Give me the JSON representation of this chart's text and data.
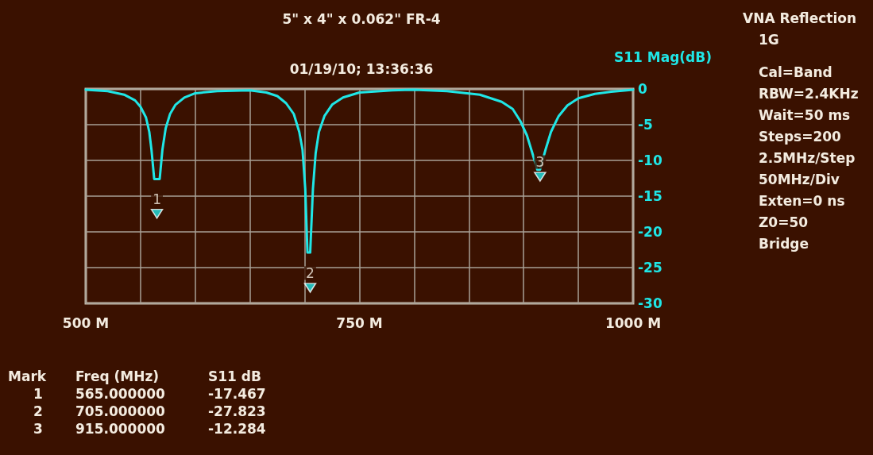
{
  "chart_data": {
    "type": "line",
    "title": "5\" x 4\" x 0.062\" FR-4",
    "subtitle": "01/19/10; 13:36:36",
    "ylabel": "S11 Mag(dB)",
    "xlim": [
      500,
      1000
    ],
    "xticks": [
      {
        "value": 500,
        "label": "500 M"
      },
      {
        "value": 550,
        "label": null
      },
      {
        "value": 600,
        "label": null
      },
      {
        "value": 650,
        "label": null
      },
      {
        "value": 700,
        "label": null
      },
      {
        "value": 750,
        "label": "750 M"
      },
      {
        "value": 800,
        "label": null
      },
      {
        "value": 850,
        "label": null
      },
      {
        "value": 900,
        "label": null
      },
      {
        "value": 950,
        "label": null
      },
      {
        "value": 1000,
        "label": "1000 M"
      }
    ],
    "ylim": [
      -30,
      0
    ],
    "yticks": [
      0,
      -5,
      -10,
      -15,
      -20,
      -25,
      -30
    ],
    "grid": true,
    "series": [
      {
        "color": "#1fe6e6",
        "marker": "none",
        "x": [
          500,
          520,
          535,
          545,
          550,
          555,
          558,
          560,
          562.5,
          567.5,
          570,
          573,
          577,
          582,
          590,
          600,
          620,
          650,
          665,
          675,
          683,
          690,
          695,
          698,
          700.5,
          702.5,
          705,
          707.5,
          710,
          713,
          718,
          725,
          735,
          750,
          780,
          800,
          830,
          860,
          880,
          890,
          897,
          903,
          908,
          912.5,
          915,
          920,
          925,
          932,
          940,
          950,
          965,
          980,
          1000
        ],
        "values": [
          -0.1,
          -0.3,
          -0.8,
          -1.6,
          -2.5,
          -4,
          -6,
          -8.5,
          -12.6,
          -12.6,
          -8.5,
          -5.5,
          -3.5,
          -2.2,
          -1.2,
          -0.6,
          -0.3,
          -0.2,
          -0.5,
          -1,
          -2,
          -3.5,
          -6,
          -8.5,
          -14,
          -22.9,
          -22.9,
          -14,
          -9,
          -6,
          -3.8,
          -2.2,
          -1.2,
          -0.5,
          -0.2,
          -0.1,
          -0.3,
          -0.8,
          -1.8,
          -2.8,
          -4.5,
          -6.5,
          -9,
          -11.3,
          -11.3,
          -8.5,
          -6,
          -3.8,
          -2.3,
          -1.3,
          -0.7,
          -0.4,
          -0.1
        ]
      },
      {
        "type": "scatter",
        "color": "#1fe6e6",
        "marker": "triangle",
        "x": [
          565,
          705,
          915
        ],
        "values": [
          -17.467,
          -27.823,
          -12.284
        ]
      }
    ],
    "annotations": [
      {
        "text": "1",
        "x": 565,
        "y": -17.467
      },
      {
        "text": "2",
        "x": 705,
        "y": -27.823
      },
      {
        "text": "3",
        "x": 915,
        "y": -12.284
      },
      "Mark",
      "Freq (MHz)",
      "S11 dB",
      "1",
      "565.000000",
      "-17.467",
      "2",
      "705.000000",
      "-27.823",
      "3",
      "915.000000",
      "-12.284",
      "VNA Reflection",
      "1G",
      "Cal=Band",
      "RBW=2.4KHz",
      "Wait=50 ms",
      "Steps=200",
      "2.5MHz/Step",
      "50MHz/Div",
      "Exten=0 ns",
      "Z0=50",
      "Bridge"
    ]
  }
}
